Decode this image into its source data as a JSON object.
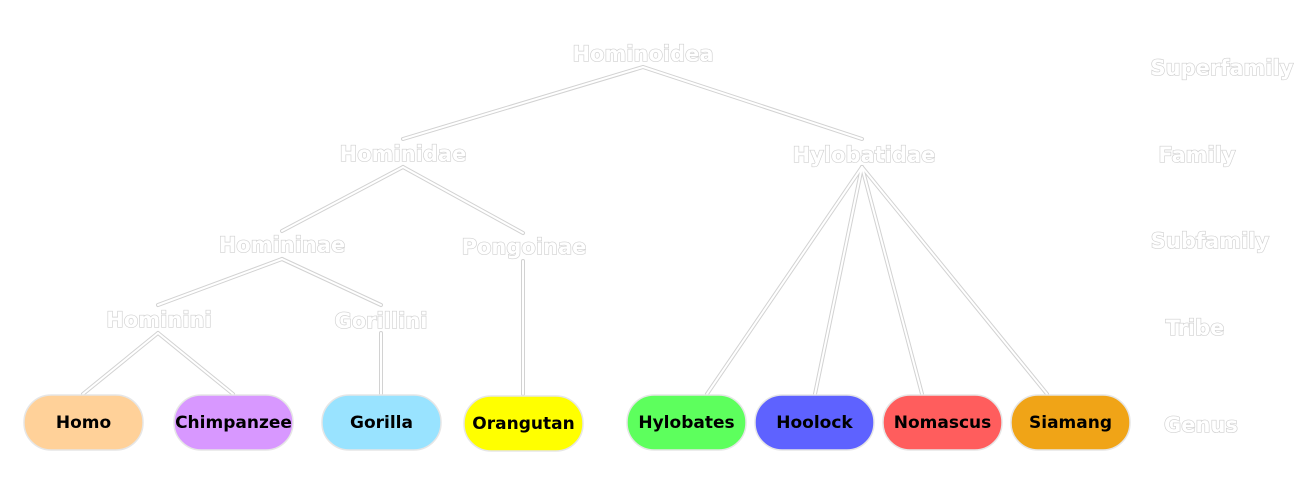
{
  "taxa": {
    "superfamily": "Hominoidea",
    "families": [
      "Hominidae",
      "Hylobatidae"
    ],
    "subfamilies": [
      "Homininae",
      "Pongoinae"
    ],
    "tribes": [
      "Hominini",
      "Gorillini"
    ]
  },
  "ranks": [
    "Superfamily",
    "Family",
    "Subfamily",
    "Tribe",
    "Genus"
  ],
  "genera": [
    {
      "label": "Homo",
      "color": "#ffd199"
    },
    {
      "label": "Chimpanzee",
      "color": "#d898ff"
    },
    {
      "label": "Gorilla",
      "color": "#99e3ff"
    },
    {
      "label": "Orangutan",
      "color": "#ffff00"
    },
    {
      "label": "Hylobates",
      "color": "#5dff5d"
    },
    {
      "label": "Hoolock",
      "color": "#5e62ff"
    },
    {
      "label": "Nomascus",
      "color": "#ff5d5d"
    },
    {
      "label": "Siamang",
      "color": "#f0a417"
    }
  ]
}
